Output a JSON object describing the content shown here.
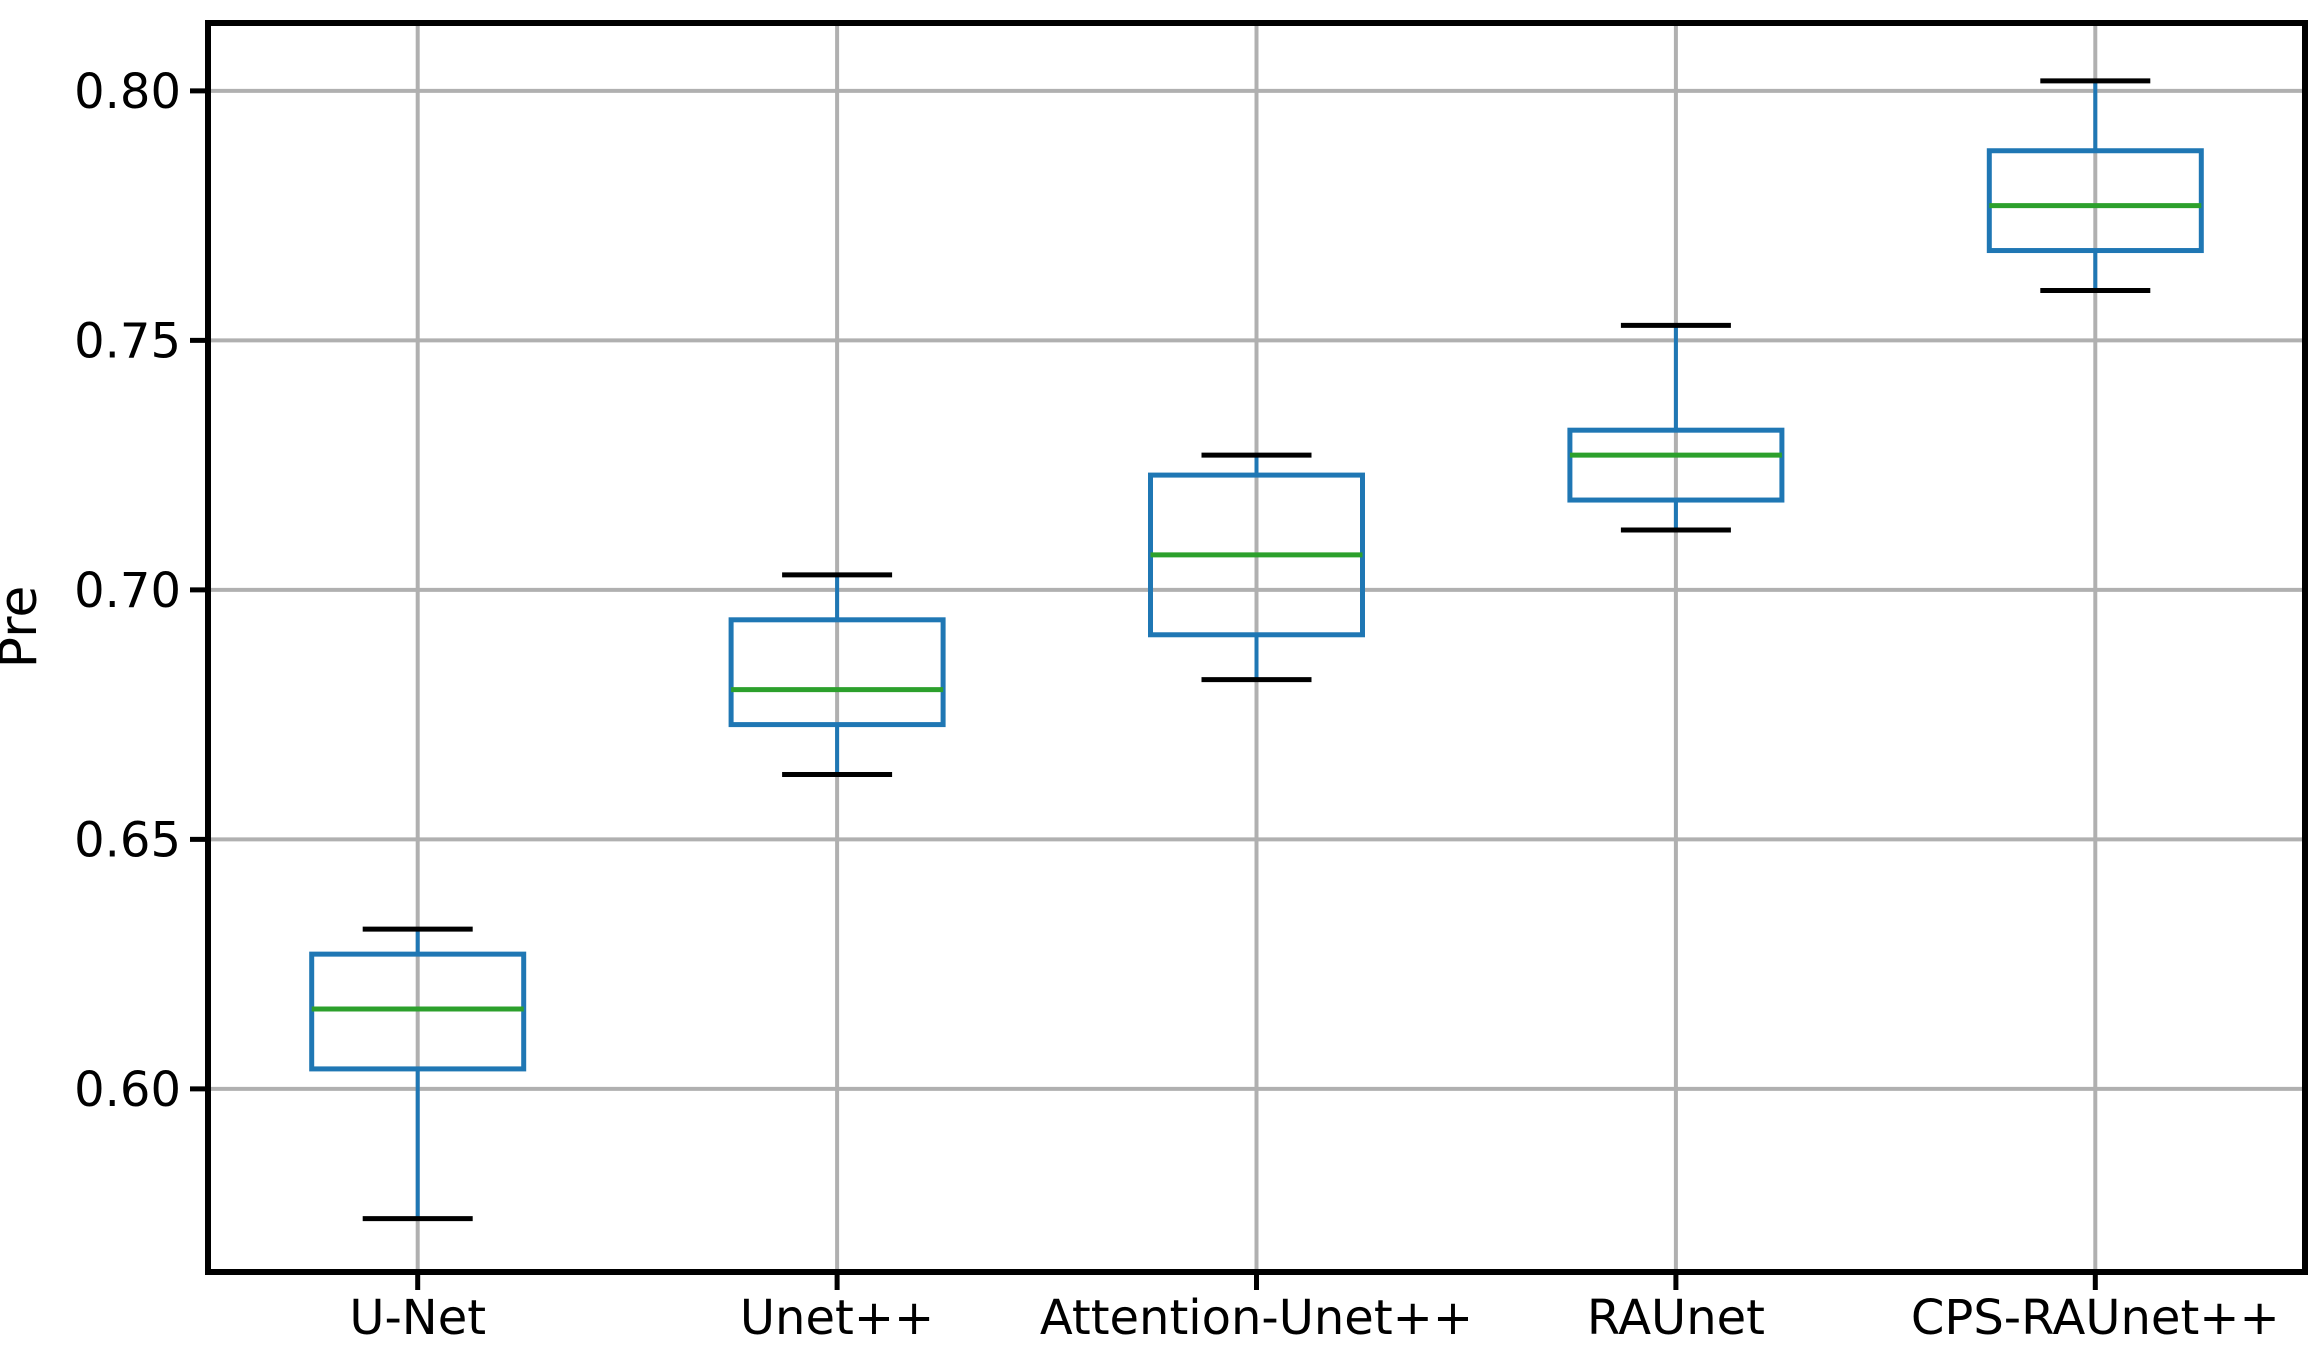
{
  "figure": {
    "background": "#ffffff"
  },
  "chart_data": {
    "type": "boxplot",
    "title": "",
    "xlabel": "",
    "ylabel": "Pre",
    "ylim": [
      0.5633,
      0.8136
    ],
    "yticks": [
      0.6,
      0.65,
      0.7,
      0.75,
      0.8
    ],
    "ytick_labels": [
      "0.60",
      "0.65",
      "0.70",
      "0.75",
      "0.80"
    ],
    "grid": true,
    "legend": "none",
    "categories": [
      "U-Net",
      "Unet++",
      "Attention-Unet++",
      "RAUnet",
      "CPS-RAUnet++"
    ],
    "series": [
      {
        "name": "U-Net",
        "whislo": 0.574,
        "q1": 0.604,
        "med": 0.616,
        "q3": 0.627,
        "whishi": 0.632,
        "fliers": []
      },
      {
        "name": "Unet++",
        "whislo": 0.663,
        "q1": 0.673,
        "med": 0.68,
        "q3": 0.694,
        "whishi": 0.703,
        "fliers": []
      },
      {
        "name": "Attention-Unet++",
        "whislo": 0.682,
        "q1": 0.691,
        "med": 0.707,
        "q3": 0.723,
        "whishi": 0.727,
        "fliers": []
      },
      {
        "name": "RAUnet",
        "whislo": 0.712,
        "q1": 0.718,
        "med": 0.727,
        "q3": 0.732,
        "whishi": 0.753,
        "fliers": []
      },
      {
        "name": "CPS-RAUnet++",
        "whislo": 0.76,
        "q1": 0.768,
        "med": 0.777,
        "q3": 0.788,
        "whishi": 0.802,
        "fliers": []
      }
    ],
    "colors": {
      "box": "#1f77b4",
      "whisker": "#1f77b4",
      "cap": "#000000",
      "median": "#2ca02c",
      "grid": "#b0b0b0",
      "spine": "#000000",
      "tick": "#000000",
      "text": "#000000"
    }
  }
}
